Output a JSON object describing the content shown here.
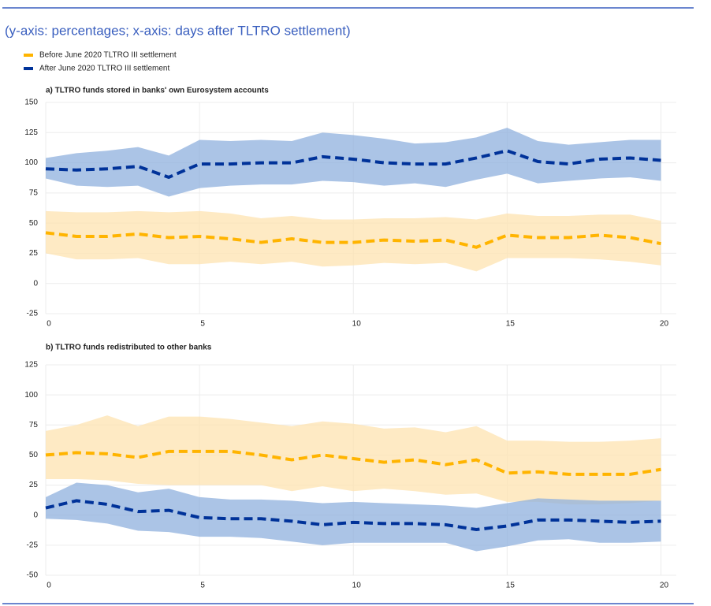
{
  "header": {
    "subtitle": "(y-axis: percentages; x-axis: days after TLTRO settlement)"
  },
  "chart_data": [
    {
      "type": "line",
      "title": "a) TLTRO funds stored in banks' own Eurosystem accounts",
      "x": [
        0,
        1,
        2,
        3,
        4,
        5,
        6,
        7,
        8,
        9,
        10,
        11,
        12,
        13,
        14,
        15,
        16,
        17,
        18,
        19,
        20
      ],
      "xlim": [
        0,
        20.5
      ],
      "xticks": [
        0,
        5,
        10,
        15,
        20
      ],
      "ylim": [
        -25,
        150
      ],
      "yticks": [
        -25,
        0,
        25,
        50,
        75,
        100,
        125,
        150
      ],
      "grid": true,
      "series": [
        {
          "name": "Before June 2020 TLTRO III settlement",
          "color": "#ffb400",
          "band_color": "#fde3b0",
          "values": [
            42,
            39,
            39,
            41,
            38,
            39,
            37,
            34,
            37,
            34,
            34,
            36,
            35,
            36,
            30,
            40,
            38,
            38,
            40,
            38,
            33
          ],
          "upper": [
            60,
            59,
            59,
            60,
            59,
            60,
            58,
            54,
            56,
            53,
            53,
            54,
            54,
            55,
            53,
            58,
            56,
            56,
            57,
            57,
            52
          ],
          "lower": [
            25,
            20,
            20,
            21,
            16,
            16,
            18,
            16,
            18,
            14,
            15,
            17,
            16,
            17,
            10,
            21,
            21,
            21,
            20,
            18,
            15
          ]
        },
        {
          "name": "After June 2020 TLTRO III settlement",
          "color": "#003299",
          "band_color": "#8fb0dd",
          "values": [
            95,
            94,
            95,
            97,
            88,
            99,
            99,
            100,
            100,
            105,
            103,
            100,
            99,
            99,
            104,
            110,
            101,
            99,
            103,
            104,
            102
          ],
          "upper": [
            104,
            108,
            110,
            113,
            106,
            119,
            118,
            119,
            118,
            125,
            123,
            120,
            116,
            117,
            121,
            129,
            118,
            115,
            117,
            119,
            119
          ],
          "lower": [
            87,
            81,
            80,
            81,
            72,
            79,
            81,
            82,
            82,
            85,
            84,
            81,
            83,
            80,
            86,
            91,
            83,
            85,
            87,
            88,
            85
          ]
        }
      ]
    },
    {
      "type": "line",
      "title": "b) TLTRO funds redistributed to other banks",
      "x": [
        0,
        1,
        2,
        3,
        4,
        5,
        6,
        7,
        8,
        9,
        10,
        11,
        12,
        13,
        14,
        15,
        16,
        17,
        18,
        19,
        20
      ],
      "xlim": [
        0,
        20.5
      ],
      "xticks": [
        0,
        5,
        10,
        15,
        20
      ],
      "ylim": [
        -50,
        125
      ],
      "yticks": [
        -50,
        -25,
        0,
        25,
        50,
        75,
        100,
        125
      ],
      "grid": true,
      "series": [
        {
          "color": "#ffb400",
          "band_color": "#fde3b0",
          "values": [
            50,
            52,
            51,
            48,
            53,
            53,
            53,
            50,
            46,
            50,
            47,
            44,
            46,
            42,
            46,
            35,
            36,
            34,
            34,
            34,
            38
          ],
          "upper": [
            70,
            75,
            83,
            74,
            82,
            82,
            80,
            77,
            74,
            78,
            76,
            72,
            73,
            69,
            74,
            62,
            62,
            61,
            61,
            62,
            64
          ],
          "lower": [
            30,
            30,
            29,
            26,
            25,
            25,
            25,
            25,
            20,
            24,
            20,
            22,
            20,
            17,
            18,
            11,
            11,
            9,
            9,
            10,
            12
          ]
        },
        {
          "color": "#003299",
          "band_color": "#8fb0dd",
          "values": [
            6,
            12,
            9,
            3,
            4,
            -2,
            -3,
            -3,
            -5,
            -8,
            -6,
            -7,
            -7,
            -8,
            -12,
            -9,
            -4,
            -4,
            -5,
            -6,
            -5
          ],
          "upper": [
            15,
            27,
            25,
            19,
            22,
            15,
            13,
            13,
            12,
            10,
            11,
            10,
            9,
            8,
            6,
            10,
            14,
            13,
            12,
            12,
            12
          ],
          "lower": [
            -3,
            -4,
            -7,
            -13,
            -14,
            -18,
            -18,
            -19,
            -22,
            -25,
            -23,
            -23,
            -23,
            -23,
            -30,
            -26,
            -21,
            -20,
            -23,
            -23,
            -22
          ]
        }
      ]
    }
  ]
}
